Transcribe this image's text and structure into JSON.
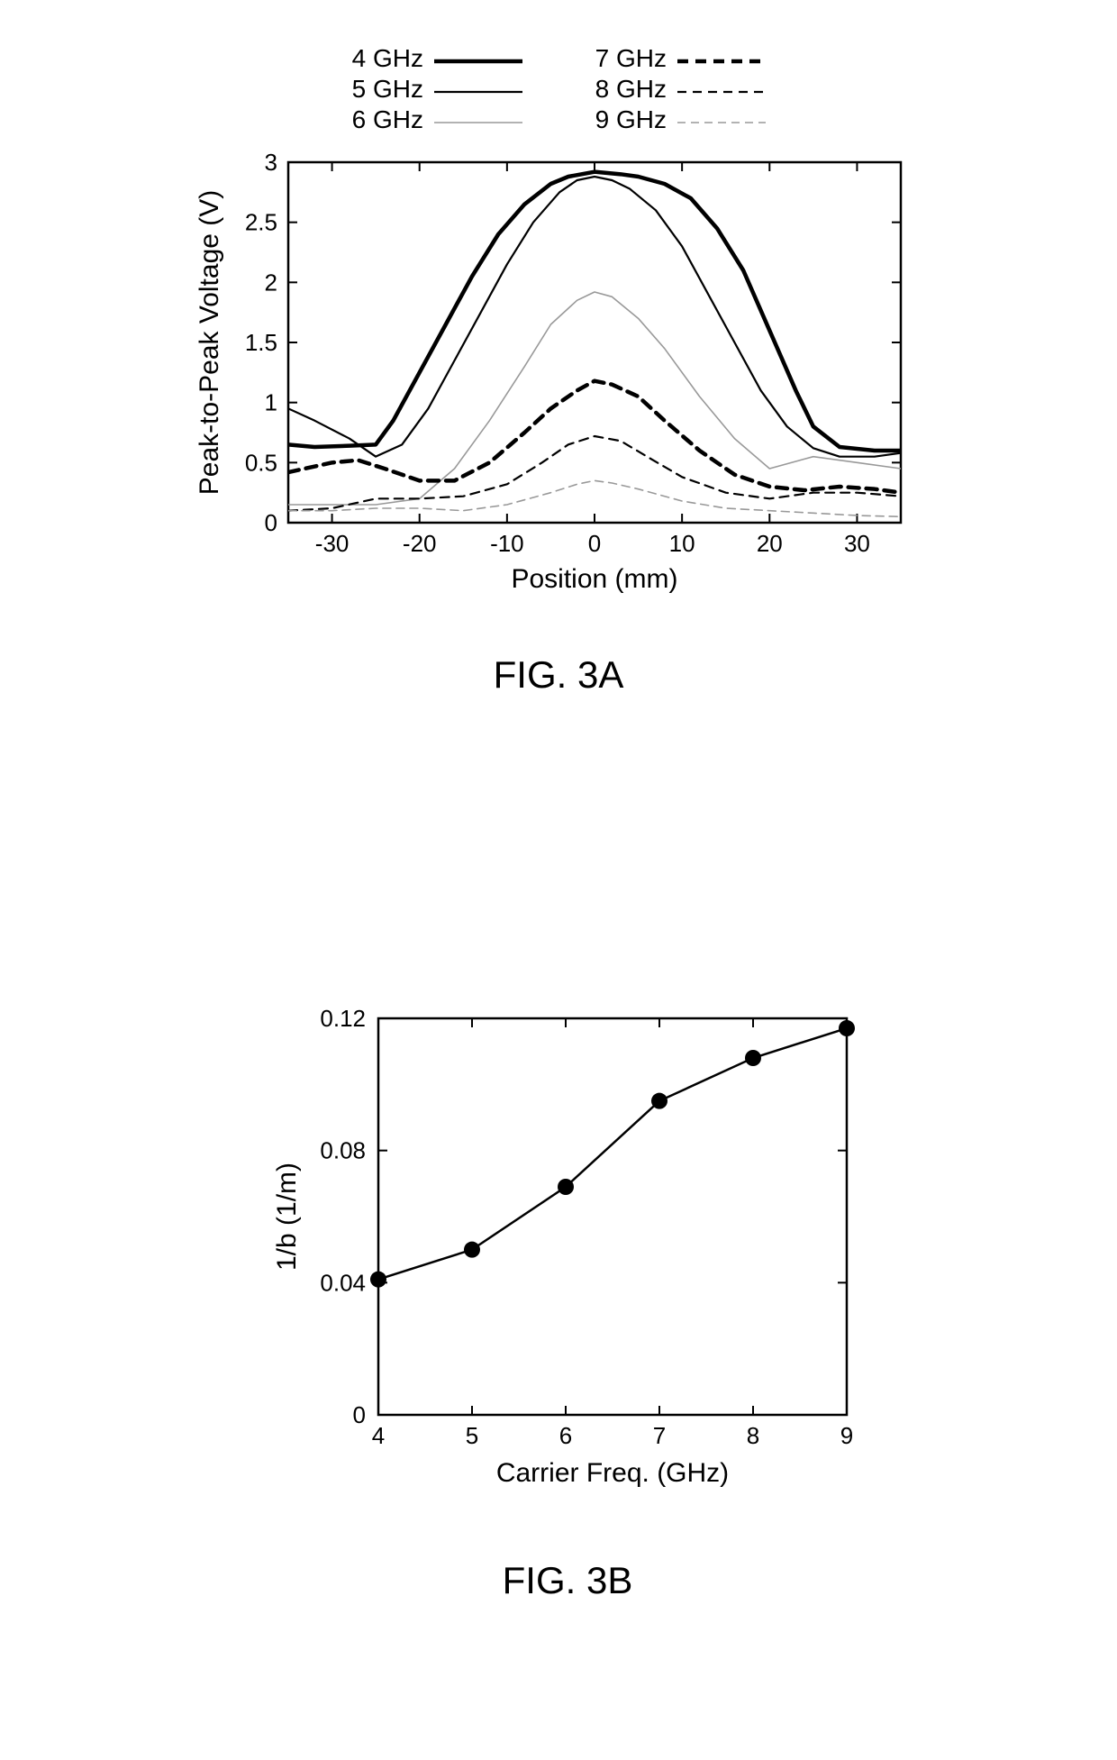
{
  "figA": {
    "caption": "FIG. 3A",
    "type": "line",
    "xlabel": "Position (mm)",
    "ylabel": "Peak-to-Peak Voltage (V)",
    "label_fontsize": 30,
    "tick_fontsize": 26,
    "xlim": [
      -35,
      35
    ],
    "ylim": [
      0,
      3
    ],
    "xtick_step": 10,
    "ytick_step": 0.5,
    "background_color": "#ffffff",
    "axis_color": "#000000",
    "legend": {
      "items": [
        {
          "label": "4 GHz",
          "stroke": "#000000",
          "width": 4.5,
          "dash": "none"
        },
        {
          "label": "5 GHz",
          "stroke": "#000000",
          "width": 2.2,
          "dash": "none"
        },
        {
          "label": "6 GHz",
          "stroke": "#999999",
          "width": 1.6,
          "dash": "none"
        },
        {
          "label": "7 GHz",
          "stroke": "#000000",
          "width": 4.5,
          "dash": "12,8"
        },
        {
          "label": "8 GHz",
          "stroke": "#000000",
          "width": 2.2,
          "dash": "10,7"
        },
        {
          "label": "9 GHz",
          "stroke": "#999999",
          "width": 1.6,
          "dash": "9,6"
        }
      ],
      "fontsize": 28
    },
    "series": [
      {
        "name": "4 GHz",
        "stroke": "#000000",
        "width": 4.5,
        "dash": "none",
        "x": [
          -35,
          -32,
          -28,
          -25,
          -23,
          -20,
          -17,
          -14,
          -11,
          -8,
          -5,
          -3,
          0,
          3,
          5,
          8,
          11,
          14,
          17,
          20,
          23,
          25,
          28,
          32,
          35
        ],
        "y": [
          0.65,
          0.63,
          0.64,
          0.65,
          0.85,
          1.25,
          1.65,
          2.05,
          2.4,
          2.65,
          2.82,
          2.88,
          2.92,
          2.9,
          2.88,
          2.82,
          2.7,
          2.45,
          2.1,
          1.6,
          1.1,
          0.8,
          0.63,
          0.6,
          0.6
        ]
      },
      {
        "name": "5 GHz",
        "stroke": "#000000",
        "width": 2.2,
        "dash": "none",
        "x": [
          -35,
          -32,
          -28,
          -25,
          -22,
          -19,
          -16,
          -13,
          -10,
          -7,
          -4,
          -2,
          0,
          2,
          4,
          7,
          10,
          13,
          16,
          19,
          22,
          25,
          28,
          32,
          35
        ],
        "y": [
          0.95,
          0.85,
          0.7,
          0.55,
          0.65,
          0.95,
          1.35,
          1.75,
          2.15,
          2.5,
          2.75,
          2.85,
          2.88,
          2.85,
          2.78,
          2.6,
          2.3,
          1.9,
          1.5,
          1.1,
          0.8,
          0.62,
          0.55,
          0.55,
          0.58
        ]
      },
      {
        "name": "6 GHz",
        "stroke": "#999999",
        "width": 1.6,
        "dash": "none",
        "x": [
          -35,
          -30,
          -25,
          -20,
          -16,
          -12,
          -8,
          -5,
          -2,
          0,
          2,
          5,
          8,
          12,
          16,
          20,
          25,
          30,
          35
        ],
        "y": [
          0.15,
          0.15,
          0.15,
          0.2,
          0.45,
          0.85,
          1.3,
          1.65,
          1.85,
          1.92,
          1.88,
          1.7,
          1.45,
          1.05,
          0.7,
          0.45,
          0.55,
          0.5,
          0.45
        ]
      },
      {
        "name": "7 GHz",
        "stroke": "#000000",
        "width": 4.5,
        "dash": "12,8",
        "x": [
          -35,
          -30,
          -27,
          -24,
          -20,
          -16,
          -12,
          -8,
          -5,
          -2,
          0,
          2,
          5,
          8,
          12,
          16,
          20,
          24,
          28,
          32,
          35
        ],
        "y": [
          0.42,
          0.5,
          0.52,
          0.45,
          0.35,
          0.35,
          0.5,
          0.75,
          0.95,
          1.1,
          1.18,
          1.15,
          1.05,
          0.85,
          0.6,
          0.4,
          0.3,
          0.27,
          0.3,
          0.28,
          0.25
        ]
      },
      {
        "name": "8 GHz",
        "stroke": "#000000",
        "width": 2.2,
        "dash": "10,7",
        "x": [
          -35,
          -30,
          -25,
          -20,
          -15,
          -10,
          -6,
          -3,
          0,
          3,
          6,
          10,
          15,
          20,
          25,
          30,
          35
        ],
        "y": [
          0.1,
          0.12,
          0.2,
          0.2,
          0.22,
          0.32,
          0.5,
          0.65,
          0.72,
          0.68,
          0.55,
          0.38,
          0.25,
          0.2,
          0.25,
          0.25,
          0.22
        ]
      },
      {
        "name": "9 GHz",
        "stroke": "#999999",
        "width": 1.6,
        "dash": "9,6",
        "x": [
          -35,
          -30,
          -25,
          -20,
          -15,
          -10,
          -5,
          -2,
          0,
          2,
          5,
          10,
          15,
          20,
          25,
          30,
          35
        ],
        "y": [
          0.1,
          0.1,
          0.12,
          0.12,
          0.1,
          0.15,
          0.25,
          0.32,
          0.35,
          0.33,
          0.28,
          0.18,
          0.12,
          0.1,
          0.08,
          0.06,
          0.05
        ]
      }
    ]
  },
  "figB": {
    "caption": "FIG. 3B",
    "type": "line+marker",
    "xlabel": "Carrier Freq. (GHz)",
    "ylabel": "1/b (1/m)",
    "label_fontsize": 30,
    "tick_fontsize": 26,
    "xlim": [
      4,
      9
    ],
    "ylim": [
      0,
      0.12
    ],
    "xtick_step": 1,
    "ytick_step": 0.04,
    "background_color": "#ffffff",
    "axis_color": "#000000",
    "marker": {
      "shape": "circle",
      "radius": 9,
      "fill": "#000000"
    },
    "line": {
      "stroke": "#000000",
      "width": 2.5
    },
    "data": {
      "x": [
        4,
        5,
        6,
        7,
        8,
        9
      ],
      "y": [
        0.041,
        0.05,
        0.069,
        0.095,
        0.108,
        0.117
      ]
    }
  }
}
